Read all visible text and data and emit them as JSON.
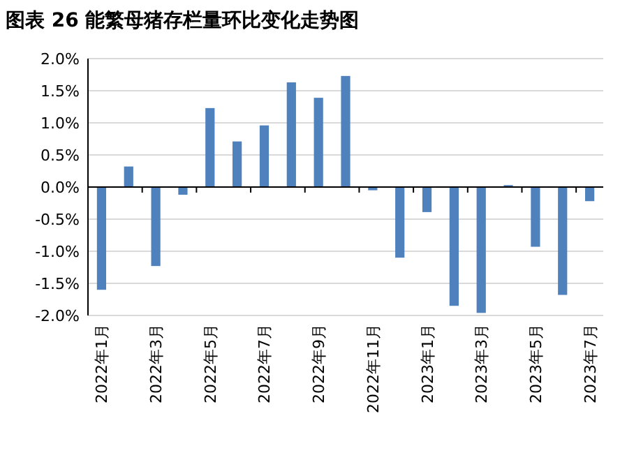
{
  "chart_data": {
    "type": "bar",
    "title": "图表 26 能繁母猪存栏量环比变化走势图",
    "categories": [
      "2022年1月",
      null,
      "2022年3月",
      null,
      "2022年5月",
      null,
      "2022年7月",
      null,
      "2022年9月",
      null,
      "2022年11月",
      null,
      "2023年1月",
      null,
      "2023年3月",
      null,
      "2023年5月",
      null,
      "2023年7月"
    ],
    "values": [
      -1.6,
      0.32,
      -1.23,
      -0.12,
      1.23,
      0.71,
      0.96,
      1.63,
      1.39,
      1.73,
      -0.05,
      -1.1,
      -0.39,
      -1.85,
      -1.96,
      0.03,
      -0.93,
      -1.68,
      -0.22
    ],
    "color": "#4f81bd",
    "ylim": [
      -2.0,
      2.0
    ],
    "yticks": [
      {
        "value": -2.0,
        "label": "-2.0%"
      },
      {
        "value": -1.5,
        "label": "-1.5%"
      },
      {
        "value": -1.0,
        "label": "-1.0%"
      },
      {
        "value": -0.5,
        "label": "-0.5%"
      },
      {
        "value": 0,
        "label": "0.0%"
      },
      {
        "value": 0.5,
        "label": "0.5%"
      },
      {
        "value": 1.0,
        "label": "1.0%"
      },
      {
        "value": 1.5,
        "label": "1.5%"
      },
      {
        "value": 2.0,
        "label": "2.0%"
      }
    ],
    "grid": "y"
  }
}
